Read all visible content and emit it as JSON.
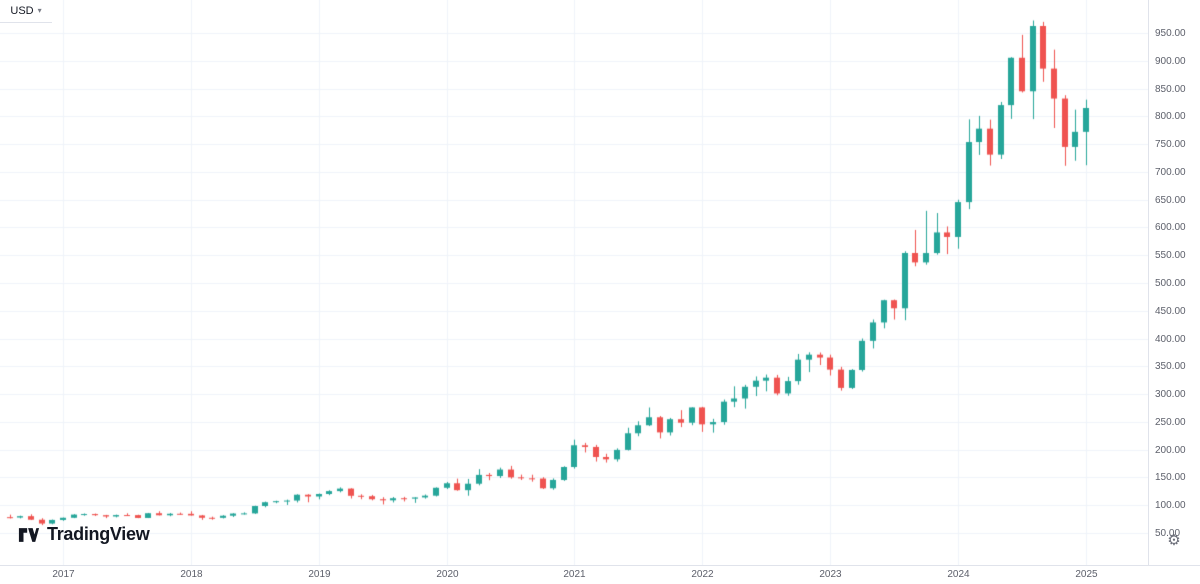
{
  "price_scale": {
    "currency_label": "USD",
    "caret": "▾"
  },
  "logo": {
    "text": "TradingView"
  },
  "toolbar": {
    "gear_icon": "⚙"
  },
  "colors": {
    "up": "#26a69a",
    "down": "#ef5350",
    "grid": "#f0f3fa",
    "axis_text": "#5d606b",
    "border": "#e0e3eb",
    "text": "#131722"
  },
  "chart_data": {
    "type": "candlestick",
    "timeframe": "monthly",
    "currency": "USD",
    "title": "",
    "ylabel": "USD",
    "ylim": [
      25,
      990
    ],
    "grid": true,
    "price_ticks": [
      950,
      900,
      850,
      800,
      750,
      700,
      650,
      600,
      550,
      500,
      450,
      400,
      350,
      300,
      250,
      200,
      150,
      100,
      50
    ],
    "year_labels": [
      "2017",
      "2018",
      "2019",
      "2020",
      "2021",
      "2022",
      "2023",
      "2024",
      "2025"
    ],
    "x_range": [
      "2016-08",
      "2025-01"
    ],
    "candles": [
      [
        "2016-08",
        78.5,
        83.0,
        76.2,
        77.8
      ],
      [
        "2016-09",
        77.8,
        81.2,
        76.3,
        80.3
      ],
      [
        "2016-10",
        80.3,
        83.6,
        73.3,
        73.9
      ],
      [
        "2016-11",
        73.9,
        76.6,
        64.2,
        67.0
      ],
      [
        "2016-12",
        67.0,
        74.2,
        65.7,
        73.5
      ],
      [
        "2017-01",
        73.5,
        77.8,
        71.9,
        77.4
      ],
      [
        "2017-02",
        77.4,
        83.9,
        76.8,
        83.1
      ],
      [
        "2017-03",
        83.1,
        85.2,
        81.1,
        84.1
      ],
      [
        "2017-04",
        84.1,
        85.0,
        80.7,
        82.1
      ],
      [
        "2017-05",
        82.1,
        82.6,
        76.8,
        79.7
      ],
      [
        "2017-06",
        79.7,
        83.1,
        78.1,
        82.3
      ],
      [
        "2017-07",
        82.3,
        85.5,
        81.0,
        82.2
      ],
      [
        "2017-08",
        82.2,
        82.9,
        76.7,
        77.1
      ],
      [
        "2017-09",
        77.1,
        86.1,
        76.9,
        85.6
      ],
      [
        "2017-10",
        85.6,
        89.1,
        81.6,
        81.9
      ],
      [
        "2017-11",
        81.9,
        85.9,
        80.2,
        84.6
      ],
      [
        "2017-12",
        84.6,
        86.7,
        83.1,
        84.5
      ],
      [
        "2018-01",
        84.5,
        89.1,
        81.3,
        81.6
      ],
      [
        "2018-02",
        81.6,
        82.5,
        73.7,
        77.4
      ],
      [
        "2018-03",
        77.4,
        79.4,
        73.9,
        77.3
      ],
      [
        "2018-04",
        77.3,
        82.1,
        76.2,
        81.1
      ],
      [
        "2018-05",
        81.1,
        85.7,
        78.8,
        85.0
      ],
      [
        "2018-06",
        85.0,
        87.1,
        83.2,
        85.3
      ],
      [
        "2018-07",
        85.3,
        99.1,
        84.4,
        98.6
      ],
      [
        "2018-08",
        98.6,
        106.5,
        96.3,
        105.4
      ],
      [
        "2018-09",
        105.4,
        108.1,
        103.6,
        107.3
      ],
      [
        "2018-10",
        107.3,
        110.1,
        100.5,
        108.4
      ],
      [
        "2018-11",
        108.4,
        119.7,
        105.0,
        118.9
      ],
      [
        "2018-12",
        118.9,
        119.9,
        105.3,
        115.7
      ],
      [
        "2019-01",
        115.7,
        121.1,
        110.6,
        120.2
      ],
      [
        "2019-02",
        120.2,
        126.9,
        118.1,
        125.4
      ],
      [
        "2019-03",
        125.4,
        132.1,
        123.2,
        129.9
      ],
      [
        "2019-04",
        129.9,
        130.6,
        112.1,
        117.0
      ],
      [
        "2019-05",
        117.0,
        119.6,
        110.8,
        116.2
      ],
      [
        "2019-06",
        116.2,
        118.5,
        108.8,
        110.8
      ],
      [
        "2019-07",
        110.8,
        114.4,
        101.4,
        108.8
      ],
      [
        "2019-08",
        108.8,
        114.8,
        105.0,
        112.6
      ],
      [
        "2019-09",
        112.6,
        115.0,
        106.8,
        111.8
      ],
      [
        "2019-10",
        111.8,
        114.4,
        104.3,
        114.0
      ],
      [
        "2019-11",
        114.0,
        119.2,
        111.9,
        117.2
      ],
      [
        "2019-12",
        117.2,
        132.1,
        115.8,
        131.4
      ],
      [
        "2020-01",
        131.4,
        141.9,
        129.1,
        139.5
      ],
      [
        "2020-02",
        139.5,
        147.9,
        126.1,
        127.1
      ],
      [
        "2020-03",
        127.1,
        147.3,
        117.1,
        138.7
      ],
      [
        "2020-04",
        138.7,
        164.9,
        135.8,
        154.6
      ],
      [
        "2020-05",
        154.6,
        158.0,
        145.0,
        152.5
      ],
      [
        "2020-06",
        152.5,
        167.6,
        149.0,
        164.2
      ],
      [
        "2020-07",
        164.2,
        170.8,
        147.8,
        150.2
      ],
      [
        "2020-08",
        150.2,
        155.1,
        145.4,
        148.4
      ],
      [
        "2020-09",
        148.4,
        154.9,
        142.4,
        148.0
      ],
      [
        "2020-10",
        148.0,
        150.4,
        129.2,
        130.5
      ],
      [
        "2020-11",
        130.5,
        148.2,
        127.9,
        145.5
      ],
      [
        "2020-12",
        145.5,
        170.1,
        143.8,
        168.8
      ],
      [
        "2021-01",
        168.8,
        218.0,
        165.9,
        207.9
      ],
      [
        "2021-02",
        207.9,
        212.2,
        195.0,
        204.9
      ],
      [
        "2021-03",
        204.9,
        208.6,
        178.6,
        186.8
      ],
      [
        "2021-04",
        186.8,
        192.6,
        176.8,
        182.6
      ],
      [
        "2021-05",
        182.6,
        202.3,
        178.5,
        199.6
      ],
      [
        "2021-06",
        199.6,
        239.5,
        198.5,
        229.5
      ],
      [
        "2021-07",
        229.5,
        251.1,
        224.2,
        243.9
      ],
      [
        "2021-08",
        243.9,
        275.9,
        242.5,
        258.3
      ],
      [
        "2021-09",
        258.3,
        260.6,
        220.2,
        231.1
      ],
      [
        "2021-10",
        231.1,
        257.1,
        225.5,
        254.8
      ],
      [
        "2021-11",
        254.8,
        271.1,
        240.6,
        248.5
      ],
      [
        "2021-12",
        248.5,
        276.2,
        244.0,
        276.0
      ],
      [
        "2022-01",
        276.0,
        277.1,
        232.0,
        245.6
      ],
      [
        "2022-02",
        245.6,
        255.5,
        230.7,
        249.7
      ],
      [
        "2022-03",
        249.7,
        290.2,
        244.9,
        286.4
      ],
      [
        "2022-04",
        286.4,
        314.0,
        276.5,
        292.1
      ],
      [
        "2022-05",
        292.1,
        316.7,
        273.9,
        313.2
      ],
      [
        "2022-06",
        313.2,
        331.8,
        296.5,
        324.2
      ],
      [
        "2022-07",
        324.2,
        335.2,
        305.0,
        329.6
      ],
      [
        "2022-08",
        329.6,
        334.6,
        297.9,
        301.2
      ],
      [
        "2022-09",
        301.2,
        331.1,
        297.0,
        323.4
      ],
      [
        "2022-10",
        323.4,
        372.3,
        317.0,
        362.0
      ],
      [
        "2022-11",
        362.0,
        375.2,
        339.6,
        371.0
      ],
      [
        "2022-12",
        371.0,
        374.9,
        352.3,
        365.8
      ],
      [
        "2023-01",
        365.8,
        371.0,
        333.5,
        344.1
      ],
      [
        "2023-02",
        344.1,
        349.1,
        306.3,
        311.2
      ],
      [
        "2023-03",
        311.2,
        344.9,
        309.2,
        343.5
      ],
      [
        "2023-04",
        343.5,
        400.1,
        340.6,
        395.9
      ],
      [
        "2023-05",
        395.9,
        434.3,
        382.2,
        429.0
      ],
      [
        "2023-06",
        429.0,
        469.9,
        418.4,
        469.0
      ],
      [
        "2023-07",
        469.0,
        470.2,
        434.3,
        454.5
      ],
      [
        "2023-08",
        454.5,
        557.1,
        433.0,
        554.0
      ],
      [
        "2023-09",
        554.0,
        595.5,
        530.1,
        537.1
      ],
      [
        "2023-10",
        537.1,
        629.9,
        533.0,
        553.9
      ],
      [
        "2023-11",
        553.9,
        625.9,
        551.1,
        591.0
      ],
      [
        "2023-12",
        591.0,
        601.8,
        552.0,
        582.9
      ],
      [
        "2024-01",
        582.9,
        649.9,
        561.7,
        645.6
      ],
      [
        "2024-02",
        645.6,
        794.5,
        633.0,
        753.7
      ],
      [
        "2024-03",
        753.7,
        800.8,
        730.6,
        777.8
      ],
      [
        "2024-04",
        777.8,
        794.0,
        711.4,
        731.1
      ],
      [
        "2024-05",
        731.1,
        825.9,
        723.2,
        820.2
      ],
      [
        "2024-06",
        820.2,
        906.4,
        795.4,
        905.4
      ],
      [
        "2024-07",
        905.4,
        946.6,
        843.0,
        845.1
      ],
      [
        "2024-08",
        845.1,
        972.5,
        795.0,
        962.6
      ],
      [
        "2024-09",
        962.6,
        970.0,
        862.2,
        885.9
      ],
      [
        "2024-10",
        885.9,
        920.0,
        779.0,
        832.0
      ],
      [
        "2024-11",
        832.0,
        838.0,
        711.0,
        745.0
      ],
      [
        "2024-12",
        745.0,
        812.0,
        720.1,
        772.1
      ],
      [
        "2025-01",
        772.1,
        830.0,
        712.0,
        815.0
      ]
    ]
  }
}
